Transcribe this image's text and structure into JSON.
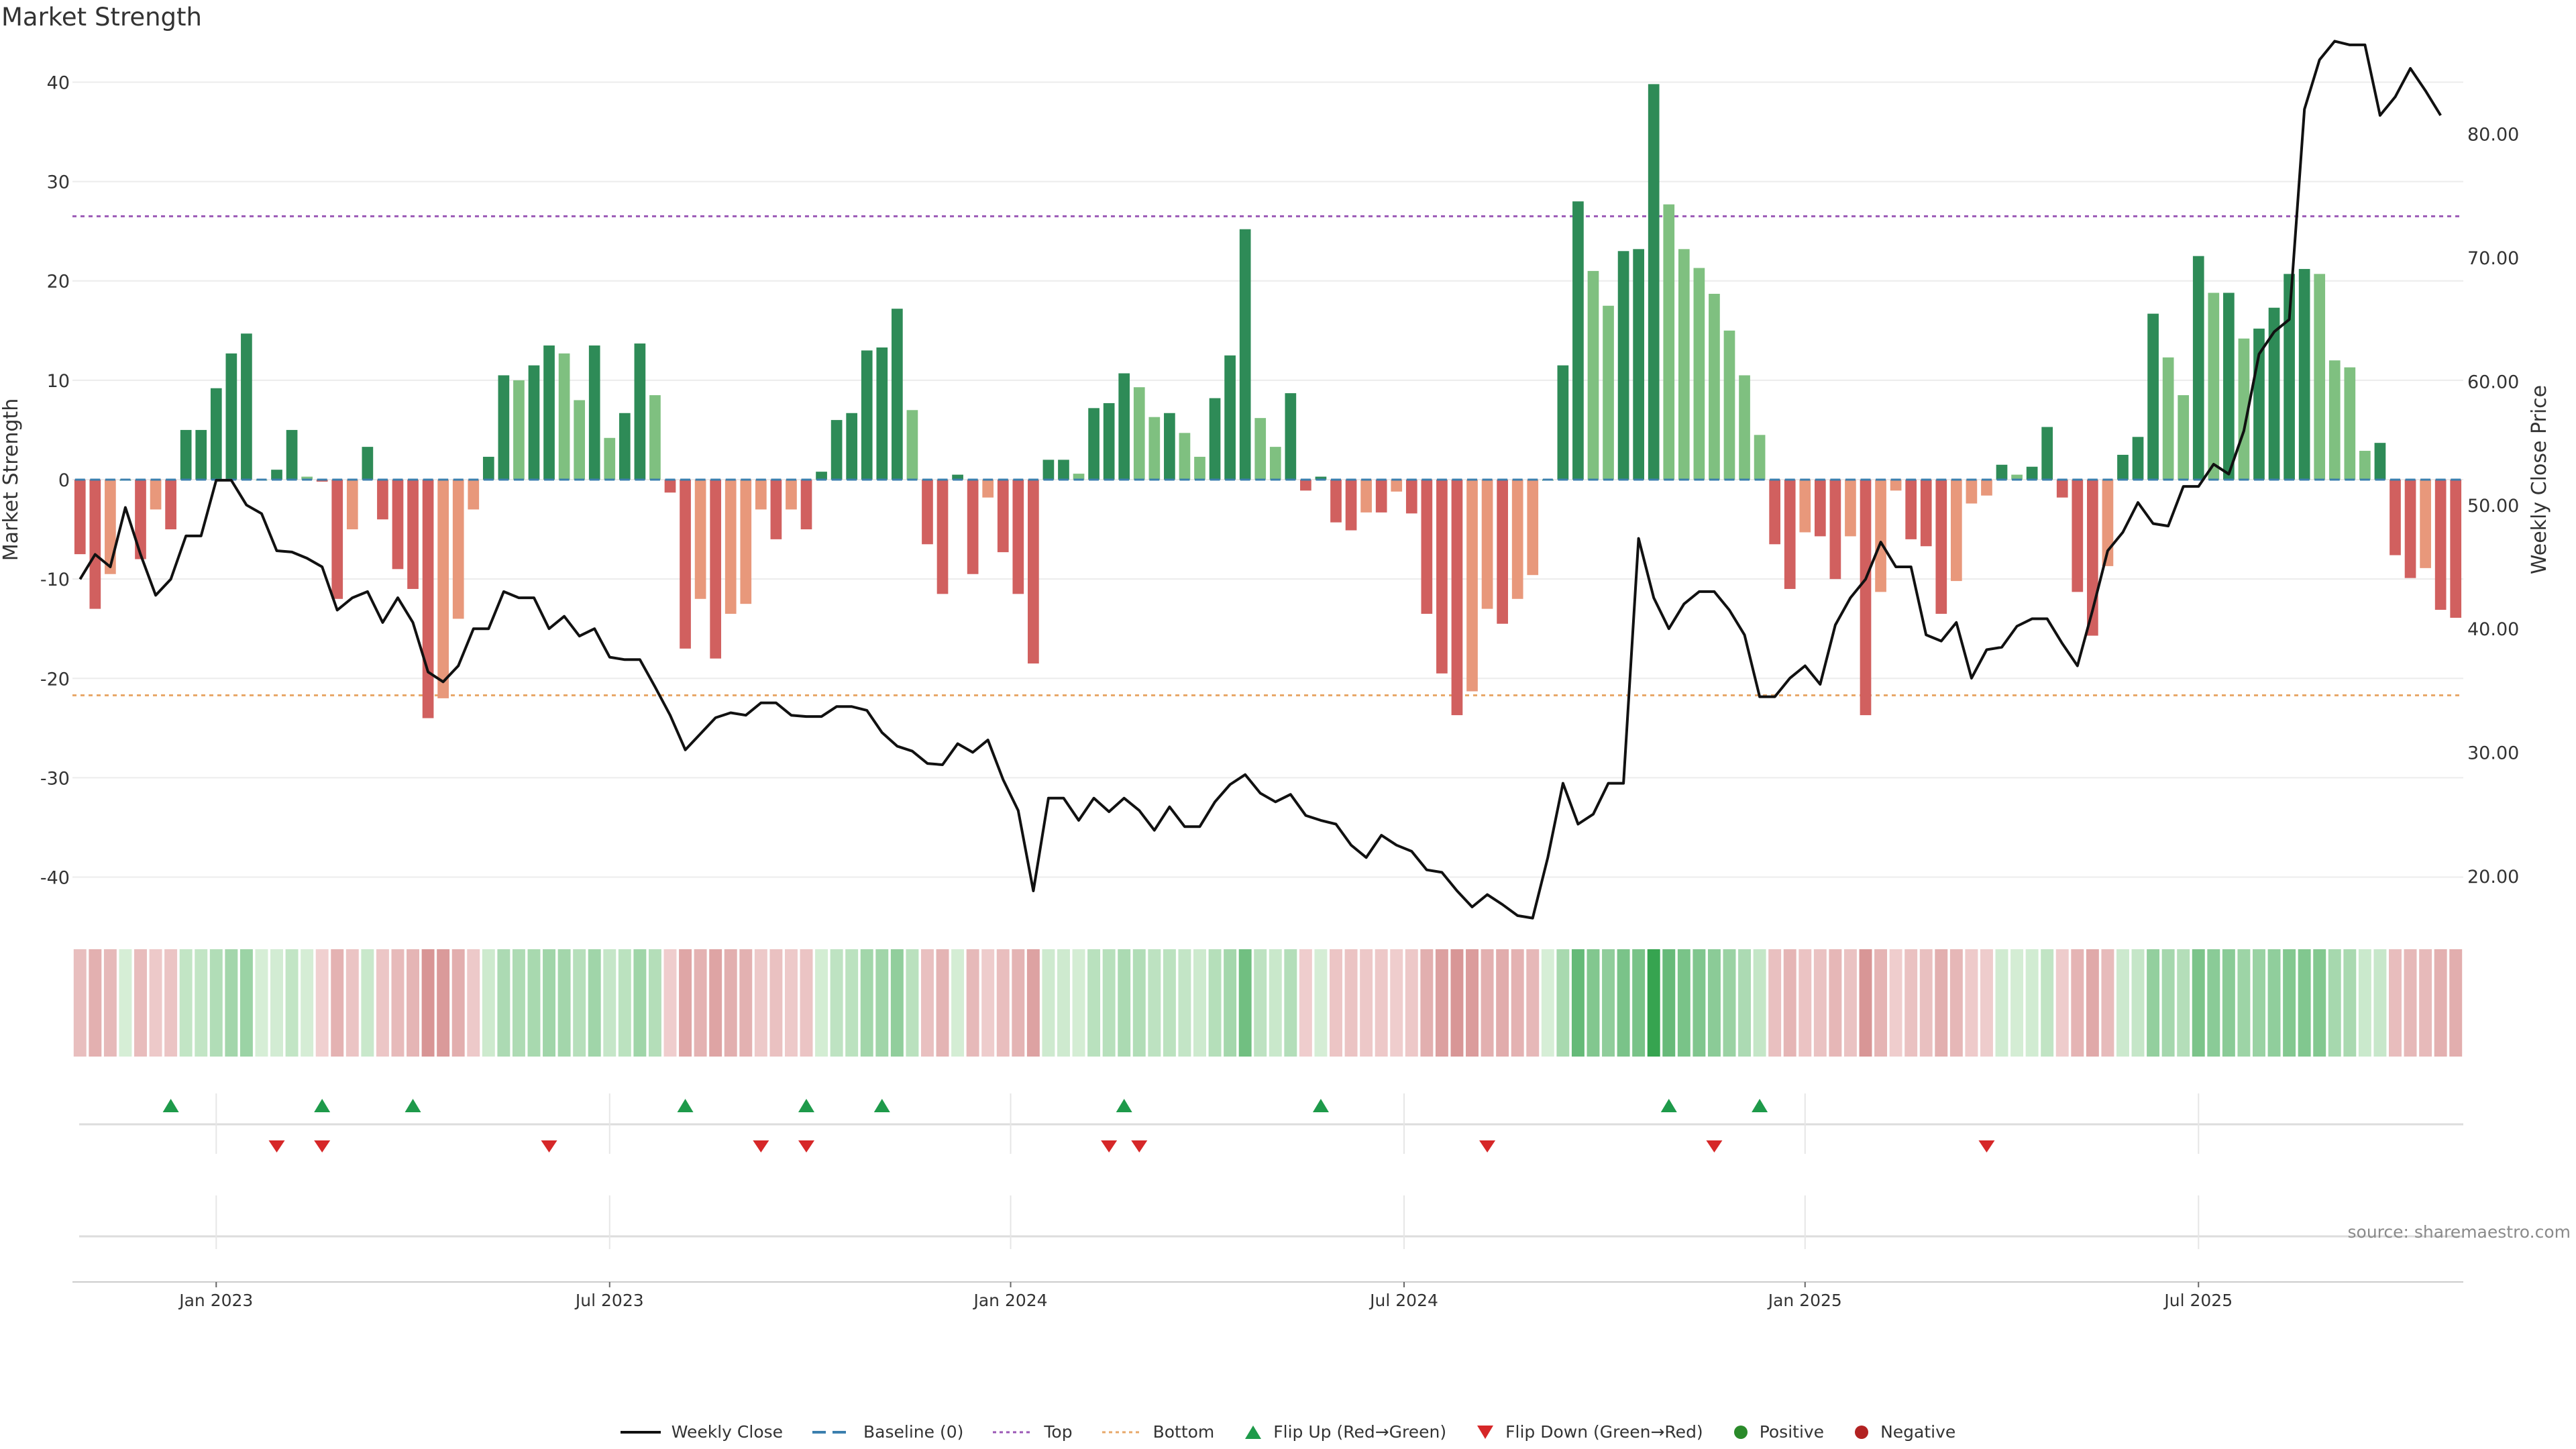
{
  "title": "Market Strength",
  "source": "source: sharemaestro.com",
  "legend": {
    "weekly_close": "Weekly Close",
    "baseline": "Baseline (0)",
    "top": "Top",
    "bottom": "Bottom",
    "flip_up": "Flip Up (Red→Green)",
    "flip_down": "Flip Down (Green→Red)",
    "positive": "Positive",
    "negative": "Negative"
  },
  "colors": {
    "pos_strong": "#2e8b57",
    "pos_light": "#7fc080",
    "neg_strong": "#d1605f",
    "neg_light": "#e8987b",
    "price": "#111111",
    "baseline": "#3b7fae",
    "top": "#9b59b6",
    "bottom": "#e8a86a",
    "flip_up": "#1e9a4a",
    "flip_down": "#d62728",
    "positive_dot": "#2a8a2a",
    "negative_dot": "#b22222"
  },
  "chart_data": {
    "type": "bar",
    "title": "Market Strength",
    "ylabel": "Market Strength",
    "y2label": "Weekly Close Price",
    "ylim": [
      -43,
      43
    ],
    "y2lim": [
      17.5,
      86.6
    ],
    "yticks": [
      -40,
      -30,
      -20,
      -10,
      0,
      10,
      20,
      30,
      40
    ],
    "y2ticks": [
      "20.00",
      "30.00",
      "40.00",
      "50.00",
      "60.00",
      "70.00",
      "80.00"
    ],
    "xticks": [
      "Jan 2023",
      "Jul 2023",
      "Jan 2024",
      "Jul 2024",
      "Jan 2025",
      "Jul 2025"
    ],
    "xtick_week_index": [
      9,
      35,
      61.5,
      87.5,
      114,
      140
    ],
    "top_threshold": 26.5,
    "bottom_threshold": -21.7,
    "strength": [
      -7.5,
      -13,
      -9.5,
      0,
      -8,
      -3,
      -5,
      5,
      5,
      9.2,
      12.7,
      14.7,
      0,
      1,
      5,
      0.3,
      -0.2,
      -12,
      -5,
      3.3,
      -4,
      -9,
      -11,
      -24,
      -22,
      -14,
      -3,
      2.3,
      10.5,
      10,
      11.5,
      13.5,
      12.7,
      8,
      13.5,
      4.2,
      6.7,
      13.7,
      8.5,
      -1.3,
      -17,
      -12,
      -18,
      -13.5,
      -12.5,
      -3,
      -6,
      -3,
      -5,
      0.8,
      6,
      6.7,
      13,
      13.3,
      17.2,
      7,
      -6.5,
      -11.5,
      0.5,
      -9.5,
      -1.8,
      -7.3,
      -11.5,
      -18.5,
      2,
      2,
      0.6,
      7.2,
      7.7,
      10.7,
      9.3,
      6.3,
      6.7,
      4.7,
      2.3,
      8.2,
      12.5,
      25.2,
      6.2,
      3.3,
      8.7,
      -1.1,
      0.3,
      -4.3,
      -5.1,
      -3.3,
      -3.3,
      -1.2,
      -3.4,
      -13.5,
      -19.5,
      -23.7,
      -21.3,
      -13,
      -14.5,
      -12,
      -9.6,
      0,
      11.5,
      28,
      21,
      17.5,
      23,
      23.2,
      39.8,
      27.7,
      23.2,
      21.3,
      18.7,
      15,
      10.5,
      4.5,
      -6.5,
      -11,
      -5.3,
      -5.7,
      -10,
      -5.7,
      -23.7,
      -11.3,
      -1.1,
      -6,
      -6.7,
      -13.5,
      -10.2,
      -2.4,
      -1.6,
      1.5,
      0.5,
      1.3,
      5.3,
      -1.8,
      -11.3,
      -15.7,
      -8.7,
      2.5,
      4.3,
      16.7,
      12.3,
      8.5,
      22.5,
      18.8,
      18.8,
      14.2,
      15.2,
      17.3,
      20.7,
      21.2,
      20.7,
      12,
      11.3,
      2.9,
      3.7,
      -7.6,
      -9.9,
      -8.9,
      -13.1,
      -13.9
    ],
    "close": [
      44,
      46,
      45,
      49.8,
      46,
      42.7,
      44,
      47.5,
      47.5,
      52,
      52,
      50,
      49.3,
      46.3,
      46.2,
      45.7,
      45,
      41.5,
      42.5,
      43,
      40.5,
      42.5,
      40.5,
      36.5,
      35.7,
      37,
      40,
      40,
      43,
      42.5,
      42.5,
      40,
      41,
      39.4,
      40,
      37.7,
      37.5,
      37.5,
      35.3,
      33,
      30.2,
      31.5,
      32.8,
      33.2,
      33,
      34,
      34,
      33,
      32.9,
      32.9,
      33.7,
      33.7,
      33.4,
      31.6,
      30.5,
      30.1,
      29.1,
      29,
      30.7,
      30,
      31,
      27.8,
      25.3,
      18.8,
      26.3,
      26.3,
      24.5,
      26.3,
      25.2,
      26.3,
      25.3,
      23.7,
      25.6,
      24,
      24,
      26,
      27.4,
      28.2,
      26.7,
      26,
      26.6,
      24.9,
      24.5,
      24.2,
      22.5,
      21.5,
      23.3,
      22.5,
      22,
      20.5,
      20.3,
      18.8,
      17.5,
      18.5,
      17.7,
      16.8,
      16.6,
      21.5,
      27.5,
      24.2,
      25,
      27.5,
      27.5,
      47.3,
      42.5,
      40,
      42,
      43,
      43,
      41.5,
      39.5,
      34.5,
      34.5,
      36,
      37,
      35.5,
      40.3,
      42.5,
      44,
      47,
      45,
      45,
      39.5,
      39,
      40.5,
      36,
      38.3,
      38.5,
      40.2,
      40.8,
      40.8,
      38.8,
      37,
      41.5,
      46.3,
      47.8,
      50.2,
      48.5,
      48.3,
      51.5,
      51.5,
      53.3,
      52.5,
      56,
      62.2,
      64,
      65,
      82,
      86,
      87.5,
      87.2,
      87.2,
      81.5,
      83,
      85.3,
      83.5,
      81.5
    ],
    "flip_up_weeks": [
      6,
      16,
      22,
      40,
      48,
      53,
      69,
      82,
      105,
      111
    ],
    "flip_down_weeks": [
      13,
      16,
      31,
      45,
      48,
      68,
      70,
      93,
      108,
      126
    ]
  }
}
